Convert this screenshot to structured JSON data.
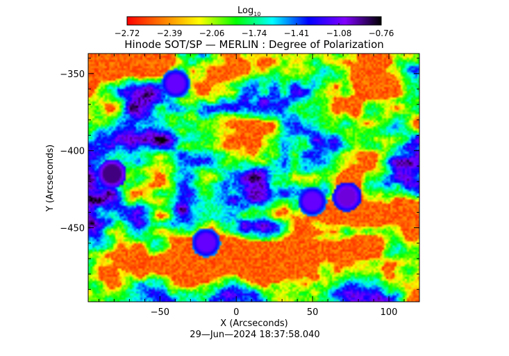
{
  "chart_data": {
    "type": "heatmap",
    "title": "Hinode SOT/SP — MERLIN : Degree of Polarization",
    "xlabel": "X (Arcseconds)",
    "ylabel": "Y (Arcseconds)",
    "xlim": [
      -97,
      120
    ],
    "ylim": [
      -498,
      -337
    ],
    "x_ticks": [
      -50,
      0,
      50,
      100
    ],
    "y_ticks": [
      -350,
      -400,
      -450
    ],
    "timestamp": "29—Jun—2024 18:37:58.040",
    "colorbar": {
      "label": "Log",
      "label_subscript": "10",
      "min": -2.72,
      "max": -0.76,
      "ticks": [
        "−2.72",
        "−2.39",
        "−2.06",
        "−1.74",
        "−1.41",
        "−1.08",
        "−0.76"
      ],
      "colormap": [
        "#ff0000",
        "#ff7f00",
        "#ffff00",
        "#00ff00",
        "#00ffff",
        "#0000ff",
        "#8000ff",
        "#000000"
      ]
    },
    "features": [
      {
        "x": -82,
        "y": -415,
        "value": -0.9
      },
      {
        "x": 73,
        "y": -430,
        "value": -1.0
      },
      {
        "x": 50,
        "y": -433,
        "value": -1.1
      },
      {
        "x": -40,
        "y": -356,
        "value": -1.1
      },
      {
        "x": -20,
        "y": -460,
        "value": -1.1
      }
    ]
  }
}
